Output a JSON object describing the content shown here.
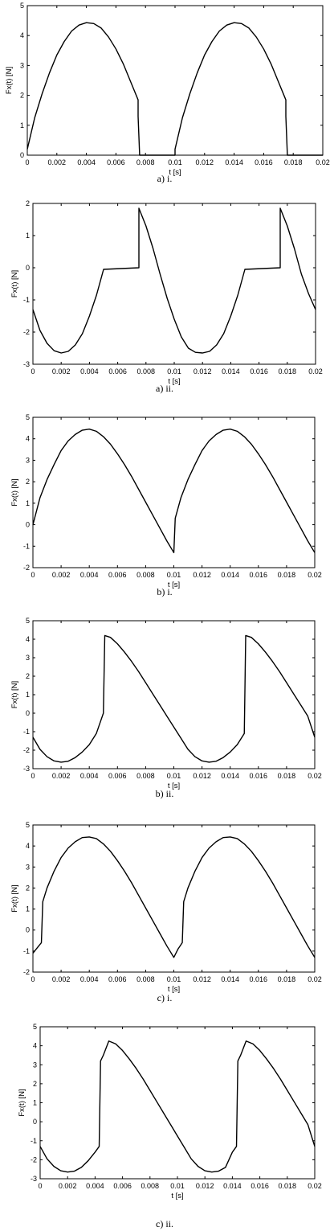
{
  "chart_data": [
    {
      "type": "line",
      "caption": "a) i.",
      "xlabel": "t [s]",
      "ylabel": "Fx(t) [N]",
      "xlim": [
        0,
        0.02
      ],
      "ylim": [
        0,
        5
      ],
      "xticks": [
        "0",
        "0.002",
        "0.004",
        "0.006",
        "0.008",
        "0.01",
        "0.012",
        "0.014",
        "0.016",
        "0.018",
        "0.02"
      ],
      "yticks": [
        "0",
        "1",
        "2",
        "3",
        "4",
        "5"
      ],
      "series": [
        {
          "x": [
            0,
            0.0005,
            0.001,
            0.0015,
            0.002,
            0.0025,
            0.003,
            0.0035,
            0.004,
            0.0045,
            0.005,
            0.0055,
            0.006,
            0.0065,
            0.007,
            0.0075,
            0.0075,
            0.0076,
            0.0076,
            0.01,
            0.01,
            0.0105,
            0.011,
            0.0115,
            0.012,
            0.0125,
            0.013,
            0.0135,
            0.014,
            0.0145,
            0.015,
            0.0155,
            0.016,
            0.0165,
            0.017,
            0.0175,
            0.0175,
            0.0176,
            0.0176,
            0.02
          ],
          "y": [
            0.2,
            1.25,
            2.05,
            2.75,
            3.35,
            3.8,
            4.15,
            4.35,
            4.43,
            4.4,
            4.25,
            3.95,
            3.55,
            3.05,
            2.45,
            1.85,
            1.3,
            0.05,
            0,
            0,
            0.2,
            1.25,
            2.05,
            2.75,
            3.35,
            3.8,
            4.15,
            4.35,
            4.43,
            4.4,
            4.25,
            3.95,
            3.55,
            3.05,
            2.45,
            1.85,
            1.3,
            0.05,
            0,
            0
          ]
        }
      ]
    },
    {
      "type": "line",
      "caption": "a) ii.",
      "xlabel": "t [s]",
      "ylabel": "Fx(t) [N]",
      "xlim": [
        0,
        0.02
      ],
      "ylim": [
        -3,
        2
      ],
      "xticks": [
        "0",
        "0.002",
        "0.004",
        "0.006",
        "0.008",
        "0.01",
        "0.012",
        "0.014",
        "0.016",
        "0.018",
        "0.02"
      ],
      "yticks": [
        "-3",
        "-2",
        "-1",
        "0",
        "1",
        "2"
      ],
      "series": [
        {
          "x": [
            0,
            0.0005,
            0.001,
            0.0015,
            0.002,
            0.0025,
            0.003,
            0.0035,
            0.004,
            0.0045,
            0.005,
            0.0075,
            0.0075,
            0.008,
            0.0085,
            0.009,
            0.0095,
            0.01,
            0.0105,
            0.011,
            0.0115,
            0.012,
            0.0125,
            0.013,
            0.0135,
            0.014,
            0.0145,
            0.015,
            0.0175,
            0.0175,
            0.018,
            0.0185,
            0.019,
            0.0195,
            0.02
          ],
          "y": [
            -1.3,
            -1.95,
            -2.35,
            -2.58,
            -2.65,
            -2.6,
            -2.4,
            -2.05,
            -1.5,
            -0.85,
            -0.05,
            0,
            1.85,
            1.3,
            0.6,
            -0.2,
            -0.95,
            -1.6,
            -2.15,
            -2.5,
            -2.63,
            -2.65,
            -2.6,
            -2.4,
            -2.05,
            -1.5,
            -0.85,
            -0.05,
            0,
            1.85,
            1.3,
            0.6,
            -0.2,
            -0.8,
            -1.3
          ]
        }
      ]
    },
    {
      "type": "line",
      "caption": "b) i.",
      "xlabel": "t [s]",
      "ylabel": "Fx(t) [N]",
      "xlim": [
        0,
        0.02
      ],
      "ylim": [
        -2,
        5
      ],
      "xticks": [
        "0",
        "0.002",
        "0.004",
        "0.006",
        "0.008",
        "0.01",
        "0.012",
        "0.014",
        "0.016",
        "0.018",
        "0.02"
      ],
      "yticks": [
        "-2",
        "-1",
        "0",
        "1",
        "2",
        "3",
        "4",
        "5"
      ],
      "series": [
        {
          "x": [
            0,
            0.0005,
            0.001,
            0.0015,
            0.002,
            0.0025,
            0.003,
            0.0035,
            0.004,
            0.0045,
            0.005,
            0.0055,
            0.006,
            0.0065,
            0.007,
            0.0075,
            0.008,
            0.0085,
            0.009,
            0.0095,
            0.01,
            0.0101,
            0.0105,
            0.011,
            0.0115,
            0.012,
            0.0125,
            0.013,
            0.0135,
            0.014,
            0.0145,
            0.015,
            0.0155,
            0.016,
            0.0165,
            0.017,
            0.0175,
            0.018,
            0.0185,
            0.019,
            0.0195,
            0.02
          ],
          "y": [
            0,
            1.25,
            2.1,
            2.8,
            3.45,
            3.9,
            4.2,
            4.4,
            4.45,
            4.35,
            4.1,
            3.75,
            3.3,
            2.8,
            2.25,
            1.65,
            1.05,
            0.45,
            -0.15,
            -0.75,
            -1.3,
            0.3,
            1.25,
            2.1,
            2.8,
            3.45,
            3.9,
            4.2,
            4.4,
            4.45,
            4.35,
            4.1,
            3.75,
            3.3,
            2.8,
            2.25,
            1.65,
            1.05,
            0.45,
            -0.15,
            -0.75,
            -1.3
          ]
        }
      ]
    },
    {
      "type": "line",
      "caption": "b) ii.",
      "xlabel": "t [s]",
      "ylabel": "Fx(t) [N]",
      "xlim": [
        0,
        0.02
      ],
      "ylim": [
        -3,
        5
      ],
      "xticks": [
        "0",
        "0.002",
        "0.004",
        "0.006",
        "0.008",
        "0.01",
        "0.012",
        "0.014",
        "0.016",
        "0.018",
        "0.02"
      ],
      "yticks": [
        "-3",
        "-2",
        "-1",
        "0",
        "1",
        "2",
        "3",
        "4",
        "5"
      ],
      "series": [
        {
          "x": [
            0,
            0.0005,
            0.001,
            0.0015,
            0.002,
            0.0025,
            0.003,
            0.0035,
            0.004,
            0.0045,
            0.005,
            0.0051,
            0.0055,
            0.006,
            0.0065,
            0.007,
            0.0075,
            0.008,
            0.0085,
            0.009,
            0.0095,
            0.01,
            0.0105,
            0.011,
            0.0115,
            0.012,
            0.0125,
            0.013,
            0.0135,
            0.014,
            0.0145,
            0.015,
            0.0151,
            0.0155,
            0.016,
            0.0165,
            0.017,
            0.0175,
            0.018,
            0.0185,
            0.019,
            0.0195,
            0.02
          ],
          "y": [
            -1.3,
            -1.95,
            -2.35,
            -2.58,
            -2.65,
            -2.6,
            -2.4,
            -2.1,
            -1.7,
            -1.1,
            0,
            4.2,
            4.1,
            3.75,
            3.3,
            2.8,
            2.25,
            1.65,
            1.05,
            0.45,
            -0.15,
            -0.75,
            -1.35,
            -1.95,
            -2.35,
            -2.58,
            -2.65,
            -2.6,
            -2.4,
            -2.1,
            -1.7,
            -1.1,
            4.2,
            4.1,
            3.75,
            3.3,
            2.8,
            2.25,
            1.65,
            1.05,
            0.45,
            -0.15,
            -1.3
          ]
        }
      ]
    },
    {
      "type": "line",
      "caption": "c) i.",
      "xlabel": "t [s]",
      "ylabel": "Fx(t) [N]",
      "xlim": [
        0,
        0.02
      ],
      "ylim": [
        -2,
        5
      ],
      "xticks": [
        "0",
        "0.002",
        "0.004",
        "0.006",
        "0.008",
        "0.01",
        "0.012",
        "0.014",
        "0.016",
        "0.018",
        "0.02"
      ],
      "yticks": [
        "-2",
        "-1",
        "0",
        "1",
        "2",
        "3",
        "4",
        "5"
      ],
      "series": [
        {
          "x": [
            0,
            0.0003,
            0.0006,
            0.0007,
            0.001,
            0.0015,
            0.002,
            0.0025,
            0.003,
            0.0035,
            0.004,
            0.0045,
            0.005,
            0.0055,
            0.006,
            0.0065,
            0.007,
            0.0075,
            0.008,
            0.0085,
            0.009,
            0.0095,
            0.01,
            0.0103,
            0.0106,
            0.0107,
            0.011,
            0.0115,
            0.012,
            0.0125,
            0.013,
            0.0135,
            0.014,
            0.0145,
            0.015,
            0.0155,
            0.016,
            0.0165,
            0.017,
            0.0175,
            0.018,
            0.0185,
            0.019,
            0.0195,
            0.02
          ],
          "y": [
            -1.1,
            -0.85,
            -0.6,
            1.35,
            2.0,
            2.8,
            3.45,
            3.9,
            4.2,
            4.4,
            4.43,
            4.35,
            4.1,
            3.75,
            3.3,
            2.8,
            2.25,
            1.65,
            1.05,
            0.45,
            -0.15,
            -0.75,
            -1.3,
            -0.9,
            -0.6,
            1.35,
            2.0,
            2.8,
            3.45,
            3.9,
            4.2,
            4.4,
            4.43,
            4.35,
            4.1,
            3.75,
            3.3,
            2.8,
            2.25,
            1.65,
            1.05,
            0.45,
            -0.15,
            -0.75,
            -1.3
          ]
        }
      ]
    },
    {
      "type": "line",
      "caption": "c) ii.",
      "xlabel": "t [s]",
      "ylabel": "Fx(t) [N]",
      "xlim": [
        0,
        0.02
      ],
      "ylim": [
        -3,
        5
      ],
      "xticks": [
        "0",
        "0.002",
        "0.004",
        "0.006",
        "0.008",
        "0.01",
        "0.012",
        "0.014",
        "0.016",
        "0.018",
        "0.02"
      ],
      "yticks": [
        "-3",
        "-2",
        "-1",
        "0",
        "1",
        "2",
        "3",
        "4",
        "5"
      ],
      "series": [
        {
          "x": [
            0,
            0.0005,
            0.001,
            0.0015,
            0.002,
            0.0025,
            0.003,
            0.0035,
            0.004,
            0.0043,
            0.0044,
            0.0046,
            0.005,
            0.0055,
            0.006,
            0.0065,
            0.007,
            0.0075,
            0.008,
            0.0085,
            0.009,
            0.0095,
            0.01,
            0.0105,
            0.011,
            0.0115,
            0.012,
            0.0125,
            0.013,
            0.0135,
            0.014,
            0.0143,
            0.0144,
            0.0146,
            0.015,
            0.0155,
            0.016,
            0.0165,
            0.017,
            0.0175,
            0.018,
            0.0185,
            0.019,
            0.0195,
            0.02
          ],
          "y": [
            -1.3,
            -1.95,
            -2.35,
            -2.58,
            -2.65,
            -2.6,
            -2.4,
            -2.05,
            -1.6,
            -1.3,
            3.2,
            3.5,
            4.25,
            4.1,
            3.75,
            3.3,
            2.8,
            2.25,
            1.65,
            1.05,
            0.45,
            -0.15,
            -0.75,
            -1.35,
            -1.95,
            -2.35,
            -2.58,
            -2.65,
            -2.6,
            -2.4,
            -1.6,
            -1.3,
            3.2,
            3.5,
            4.25,
            4.1,
            3.75,
            3.3,
            2.8,
            2.25,
            1.65,
            1.05,
            0.45,
            -0.15,
            -1.3
          ]
        }
      ]
    }
  ]
}
